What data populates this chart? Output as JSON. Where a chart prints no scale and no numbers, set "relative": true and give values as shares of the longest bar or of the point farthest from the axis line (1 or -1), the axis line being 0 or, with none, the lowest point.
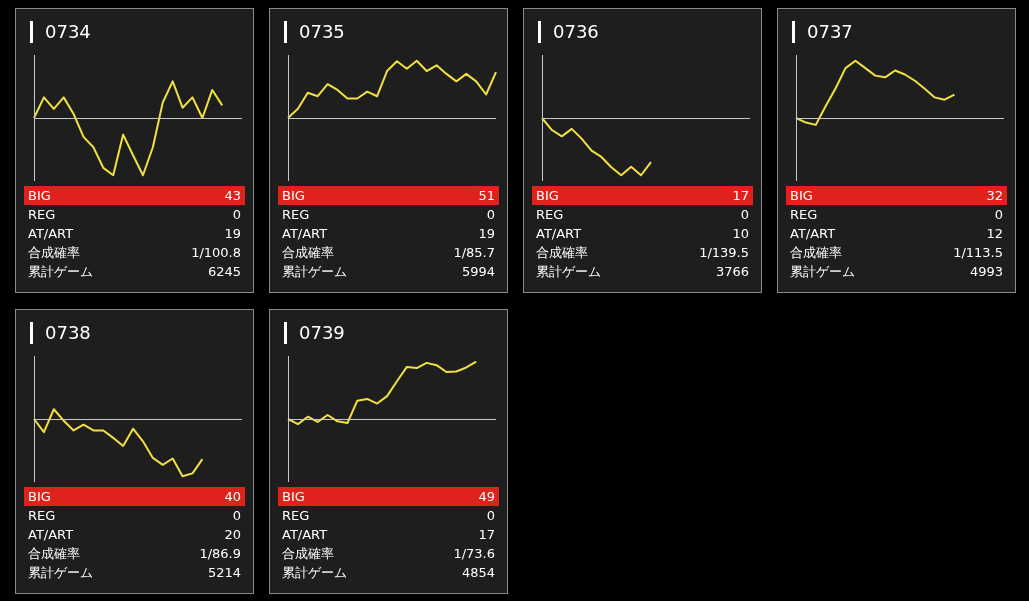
{
  "chart_data": [
    {
      "type": "line",
      "title": "0734",
      "relative": true,
      "color": "#f0e040",
      "categories": [
        null,
        null,
        null,
        null,
        null,
        null,
        null,
        null,
        null,
        null,
        null,
        null,
        null,
        null,
        null,
        null,
        null,
        null,
        null,
        null,
        null,
        null
      ],
      "values": [
        0,
        0.36,
        0.16,
        0.36,
        0.07,
        -0.33,
        -0.51,
        -0.87,
        -1,
        -0.29,
        -0.65,
        -1,
        -0.51,
        0.27,
        0.64,
        0.18,
        0.36,
        0,
        0.49,
        0.22,
        null,
        null
      ],
      "annotations": [
        "BIG",
        "43",
        "REG",
        "0",
        "AT/ART",
        "19",
        "合成確率",
        "1/100.8",
        "累計ゲーム",
        "6245"
      ]
    },
    {
      "type": "line",
      "title": "0735",
      "relative": true,
      "color": "#f0e040",
      "categories": [
        null,
        null,
        null,
        null,
        null,
        null,
        null,
        null,
        null,
        null,
        null,
        null,
        null,
        null,
        null,
        null,
        null,
        null,
        null,
        null,
        null,
        null
      ],
      "values": [
        0,
        0.16,
        0.44,
        0.38,
        0.59,
        0.49,
        0.34,
        0.34,
        0.46,
        0.38,
        0.82,
        0.99,
        0.86,
        1,
        0.82,
        0.92,
        0.77,
        0.64,
        0.77,
        0.64,
        0.41,
        0.8
      ],
      "annotations": [
        "BIG",
        "51",
        "REG",
        "0",
        "AT/ART",
        "19",
        "合成確率",
        "1/85.7",
        "累計ゲーム",
        "5994"
      ]
    },
    {
      "type": "line",
      "title": "0736",
      "relative": true,
      "color": "#f0e040",
      "categories": [
        null,
        null,
        null,
        null,
        null,
        null,
        null,
        null,
        null,
        null,
        null,
        null,
        null,
        null,
        null,
        null,
        null,
        null,
        null,
        null,
        null,
        null
      ],
      "values": [
        0,
        -0.21,
        -0.32,
        -0.19,
        -0.36,
        -0.57,
        -0.68,
        -0.86,
        -1,
        -0.85,
        -1,
        -0.77,
        null,
        null,
        null,
        null,
        null,
        null,
        null,
        null,
        null,
        null
      ],
      "annotations": [
        "BIG",
        "17",
        "REG",
        "0",
        "AT/ART",
        "10",
        "合成確率",
        "1/139.5",
        "累計ゲーム",
        "3766"
      ]
    },
    {
      "type": "line",
      "title": "0737",
      "relative": true,
      "color": "#f0e040",
      "categories": [
        null,
        null,
        null,
        null,
        null,
        null,
        null,
        null,
        null,
        null,
        null,
        null,
        null,
        null,
        null,
        null,
        null,
        null,
        null,
        null,
        null,
        null
      ],
      "values": [
        0,
        -0.08,
        -0.12,
        0.21,
        0.52,
        0.87,
        1,
        0.87,
        0.74,
        0.71,
        0.83,
        0.76,
        0.65,
        0.51,
        0.36,
        0.32,
        0.41,
        null,
        null,
        null,
        null,
        null
      ],
      "annotations": [
        "BIG",
        "32",
        "REG",
        "0",
        "AT/ART",
        "12",
        "合成確率",
        "1/113.5",
        "累計ゲーム",
        "4993"
      ]
    },
    {
      "type": "line",
      "title": "0738",
      "relative": true,
      "color": "#f0e040",
      "categories": [
        null,
        null,
        null,
        null,
        null,
        null,
        null,
        null,
        null,
        null,
        null,
        null,
        null,
        null,
        null,
        null,
        null,
        null,
        null,
        null,
        null,
        null
      ],
      "values": [
        0,
        -0.23,
        0.17,
        -0.03,
        -0.2,
        -0.1,
        -0.2,
        -0.2,
        -0.33,
        -0.47,
        -0.17,
        -0.39,
        -0.68,
        -0.8,
        -0.69,
        -1,
        -0.95,
        -0.7,
        null,
        null,
        null,
        null
      ],
      "annotations": [
        "BIG",
        "40",
        "REG",
        "0",
        "AT/ART",
        "20",
        "合成確率",
        "1/86.9",
        "累計ゲーム",
        "5214"
      ]
    },
    {
      "type": "line",
      "title": "0739",
      "relative": true,
      "color": "#f0e040",
      "categories": [
        null,
        null,
        null,
        null,
        null,
        null,
        null,
        null,
        null,
        null,
        null,
        null,
        null,
        null,
        null,
        null,
        null,
        null,
        null,
        null,
        null,
        null
      ],
      "values": [
        0,
        -0.09,
        0.04,
        -0.05,
        0.07,
        -0.04,
        -0.07,
        0.32,
        0.35,
        0.27,
        0.4,
        0.66,
        0.91,
        0.89,
        0.98,
        0.94,
        0.82,
        0.83,
        0.9,
        1,
        null,
        null
      ],
      "annotations": [
        "BIG",
        "49",
        "REG",
        "0",
        "AT/ART",
        "17",
        "合成確率",
        "1/73.6",
        "累計ゲーム",
        "4854"
      ]
    }
  ]
}
